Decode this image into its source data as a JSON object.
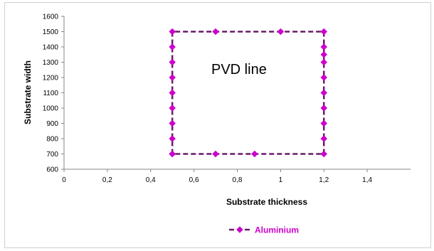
{
  "chart_data": {
    "type": "line",
    "xlabel": "Substrate thickness",
    "ylabel": "Substrate width",
    "xlim": [
      0,
      1.6
    ],
    "ylim": [
      600,
      1600
    ],
    "x_ticks": [
      0,
      0.2,
      0.4,
      0.6,
      0.8,
      1.0,
      1.2,
      1.4
    ],
    "x_tick_labels": [
      "0",
      "0,2",
      "0,4",
      "0,6",
      "0,8",
      "1",
      "1,2",
      "1,4"
    ],
    "y_ticks": [
      600,
      700,
      800,
      900,
      1000,
      1100,
      1200,
      1300,
      1400,
      1500,
      1600
    ],
    "y_tick_labels": [
      "600",
      "700",
      "800",
      "900",
      "1000",
      "1100",
      "1200",
      "1300",
      "1400",
      "1500",
      "1600"
    ],
    "grid": false,
    "legend_position": "bottom",
    "annotation": "PVD line",
    "series": [
      {
        "name": "Aluminium",
        "color": "#cc00cc",
        "line_color": "#6b1a6b",
        "line_style": "dashed",
        "marker": "diamond",
        "points": [
          {
            "x": 0.5,
            "y": 700
          },
          {
            "x": 0.5,
            "y": 800
          },
          {
            "x": 0.5,
            "y": 900
          },
          {
            "x": 0.5,
            "y": 1000
          },
          {
            "x": 0.5,
            "y": 1100
          },
          {
            "x": 0.5,
            "y": 1200
          },
          {
            "x": 0.5,
            "y": 1300
          },
          {
            "x": 0.5,
            "y": 1400
          },
          {
            "x": 0.5,
            "y": 1500
          },
          {
            "x": 0.7,
            "y": 1500
          },
          {
            "x": 1.0,
            "y": 1500
          },
          {
            "x": 1.2,
            "y": 1500
          },
          {
            "x": 1.2,
            "y": 1400
          },
          {
            "x": 1.2,
            "y": 1350
          },
          {
            "x": 1.2,
            "y": 1300
          },
          {
            "x": 1.2,
            "y": 1200
          },
          {
            "x": 1.2,
            "y": 1100
          },
          {
            "x": 1.2,
            "y": 1000
          },
          {
            "x": 1.2,
            "y": 900
          },
          {
            "x": 1.2,
            "y": 800
          },
          {
            "x": 1.2,
            "y": 700
          },
          {
            "x": 0.88,
            "y": 700
          },
          {
            "x": 0.7,
            "y": 700
          },
          {
            "x": 0.5,
            "y": 700
          }
        ]
      }
    ]
  }
}
